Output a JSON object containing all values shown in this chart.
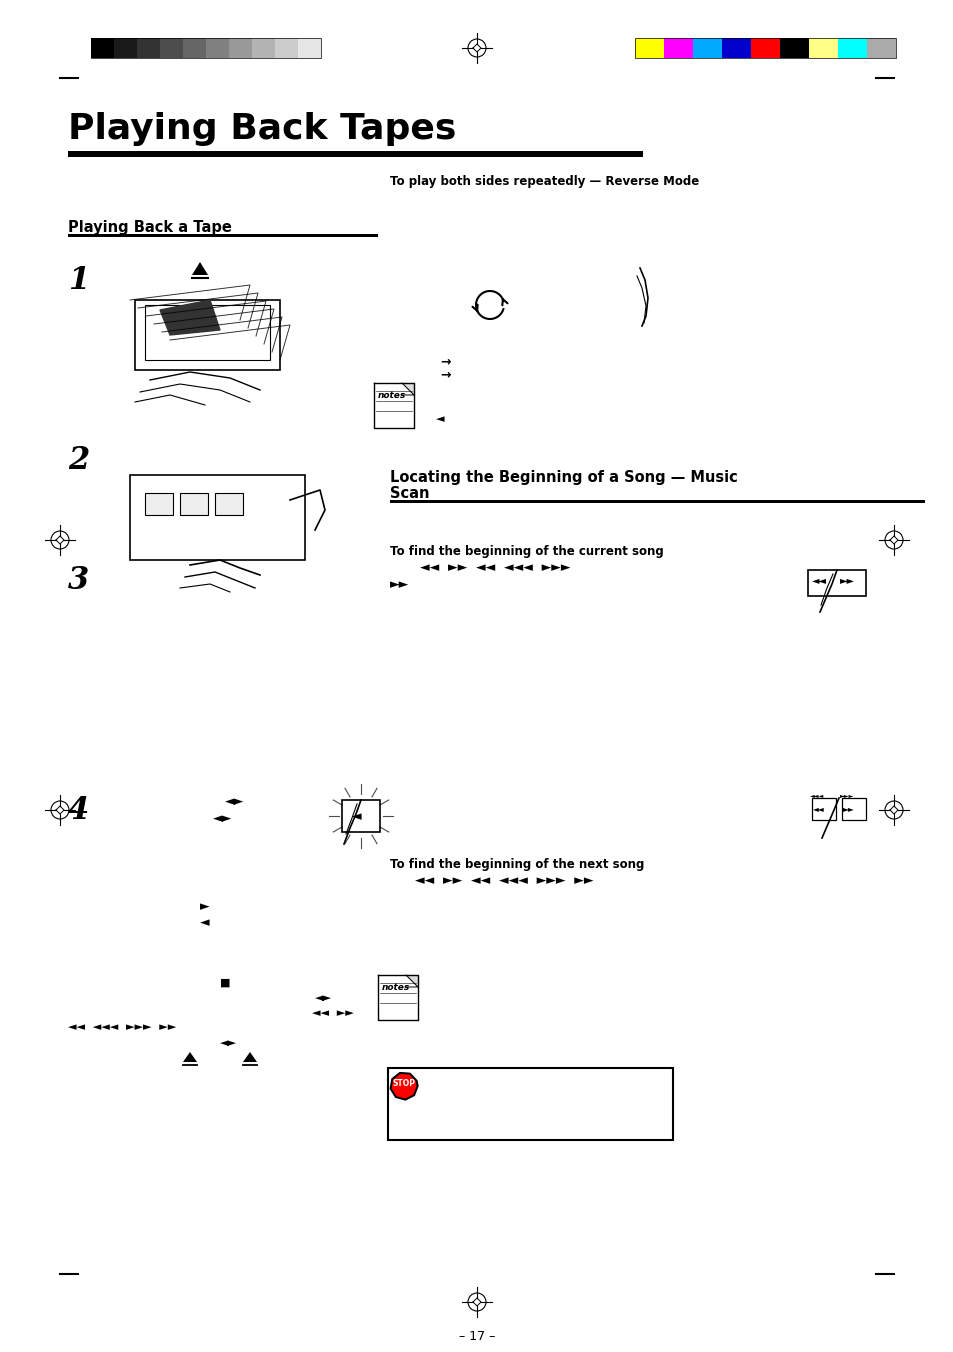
{
  "page_title": "Playing Back Tapes",
  "subtitle_line": "To play both sides repeatedly — Reverse Mode",
  "section1_title": "Playing Back a Tape",
  "section2_title": "Locating the Beginning of a Song — Music\nScan",
  "step_labels": [
    "1",
    "2",
    "3",
    "4"
  ],
  "current_song_label": "To find the beginning of the current song",
  "current_song_seq": "◄◄  ►►  ◄◄  ◄◄◄  ►►►",
  "next_song_label": "To find the beginning of the next song",
  "next_song_seq": "◄◄  ►►  ◄◄  ◄◄◄  ►►►  ►►",
  "page_number": "– 17 –",
  "gray_colors": [
    "#000000",
    "#1a1a1a",
    "#333333",
    "#4d4d4d",
    "#666666",
    "#808080",
    "#999999",
    "#b3b3b3",
    "#cccccc",
    "#e6e6e6"
  ],
  "color_bars": [
    "#ffff00",
    "#ff00ff",
    "#00aaff",
    "#0000cc",
    "#ff0000",
    "#000000",
    "#ffff88",
    "#00ffff",
    "#aaaaaa"
  ],
  "bg_color": "#ffffff"
}
